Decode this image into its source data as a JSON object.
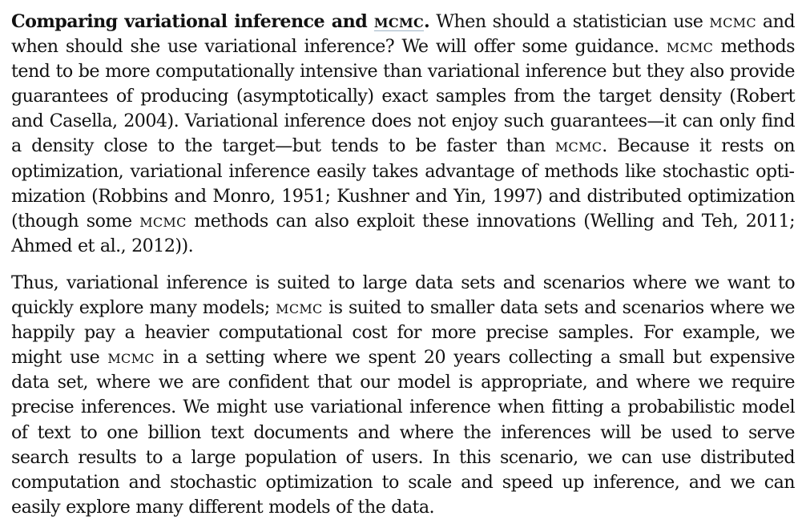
{
  "paragraph1": {
    "heading_pre": "Comparing variational inference and ",
    "heading_sc": "MCMC",
    "heading_post": ".",
    "s1": " When should a statistician use ",
    "sc1": "MCMC",
    "s2": " and when should she use variational inference? We will offer some guidance. ",
    "sc2": "MCMC",
    "s3": " methods tend to be more computationally intensive than variational inference but they also provide guarantees of producing (asymptotically) exact samples from the target density (Robert and Casella, 2004). Variational inference does not enjoy such guarantees—it can only find a density close to the target—but tends to be faster than ",
    "sc3": "MCMC",
    "s4": ". Because it rests on optimization, variational inference easily takes advantage of methods like stochastic opti­mization (Robbins and Monro, 1951; Kushner and Yin, 1997) and distributed optimization (though some ",
    "sc4": "MCMC",
    "s5": " methods can also exploit these innovations (Welling and Teh, 2011; Ahmed et al., 2012))."
  },
  "paragraph2": {
    "s1": "Thus, variational inference is suited to large data sets and scenarios where we want to quickly explore many models; ",
    "sc1": "MCMC",
    "s2": " is suited to smaller data sets and scenarios where we happily pay a heavier computational cost for more precise samples. For example, we might use ",
    "sc2": "MCMC",
    "s3": " in a setting where we spent 20 years collecting a small but expensive data set, where we are confident that our model is appropriate, and where we require precise inferences. We might use variational inference when fitting a probabilistic model of text to one billion text documents and where the inferences will be used to serve search results to a large population of users. In this scenario, we can use distributed computation and stochastic optimization to scale and speed up inference, and we can easily explore many different models of the data."
  }
}
